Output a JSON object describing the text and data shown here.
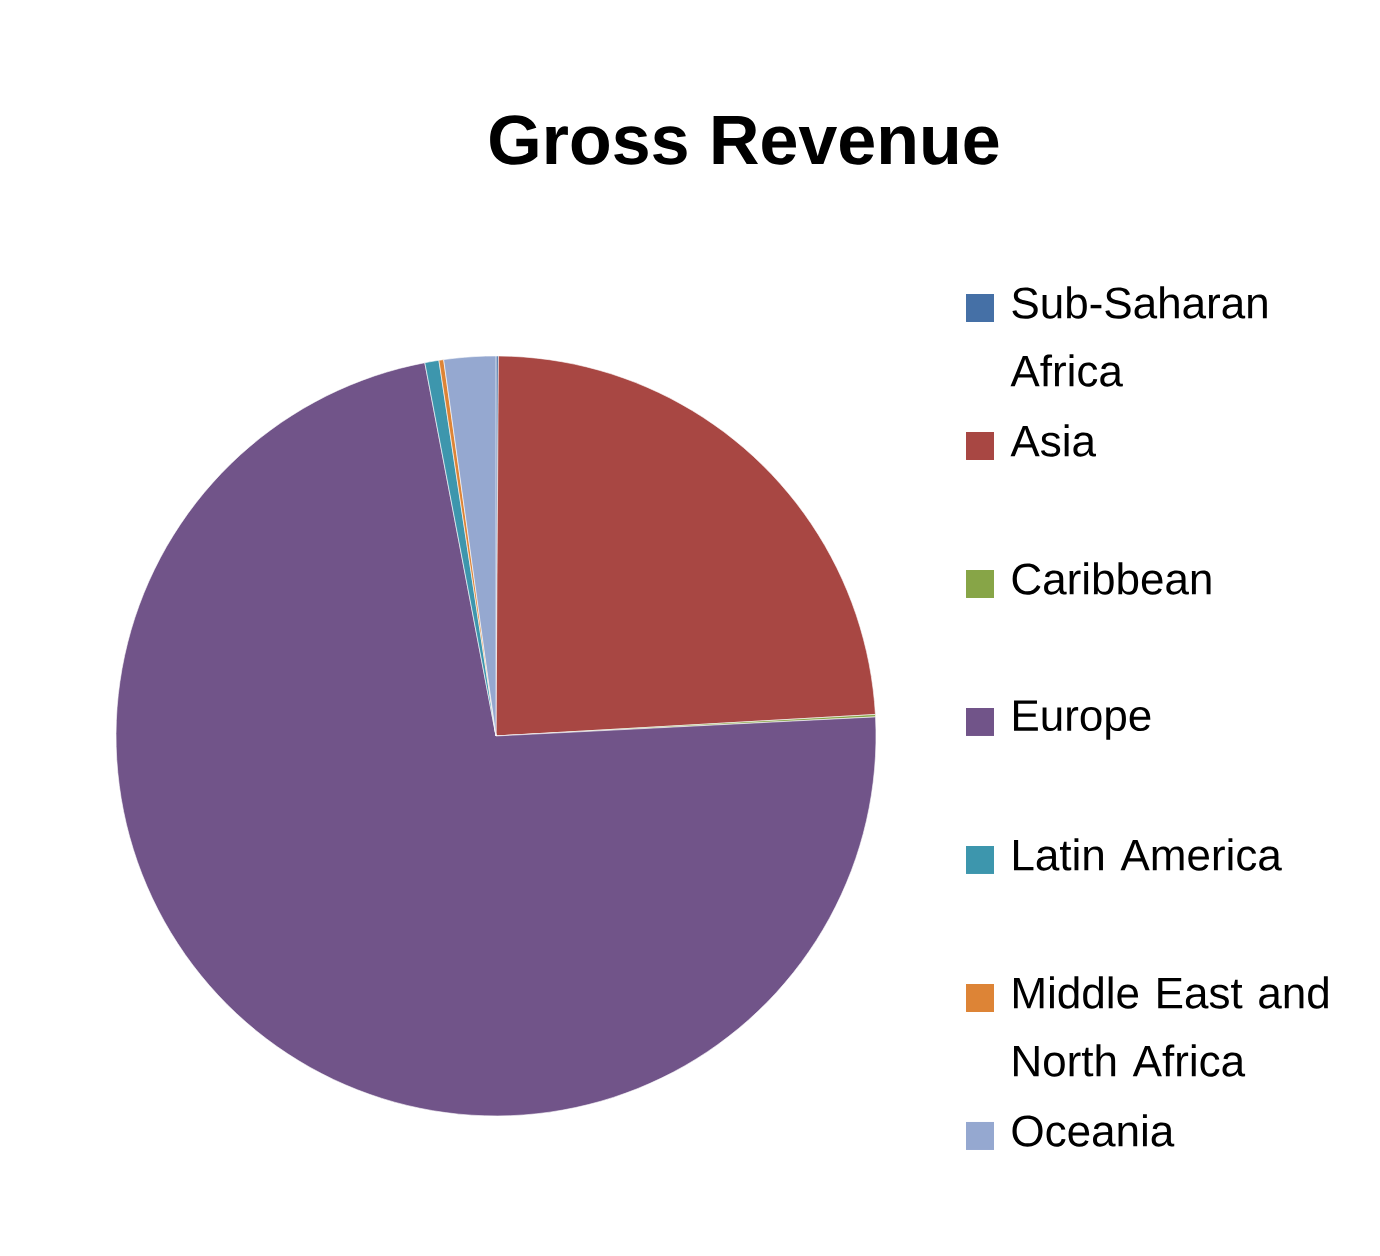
{
  "chart_data": {
    "type": "pie",
    "title": "Gross Revenue",
    "categories": [
      "Sub-Saharan Africa",
      "Asia",
      "Caribbean",
      "Europe",
      "Latin America",
      "Middle East and North Africa",
      "Oceania"
    ],
    "values": [
      0.1,
      24,
      0.1,
      72.8,
      0.6,
      0.2,
      2.2
    ],
    "colors": [
      "#4570a6",
      "#a84743",
      "#87a547",
      "#715489",
      "#3d96ad",
      "#dd8436",
      "#95a8d0"
    ],
    "legend": "right"
  }
}
